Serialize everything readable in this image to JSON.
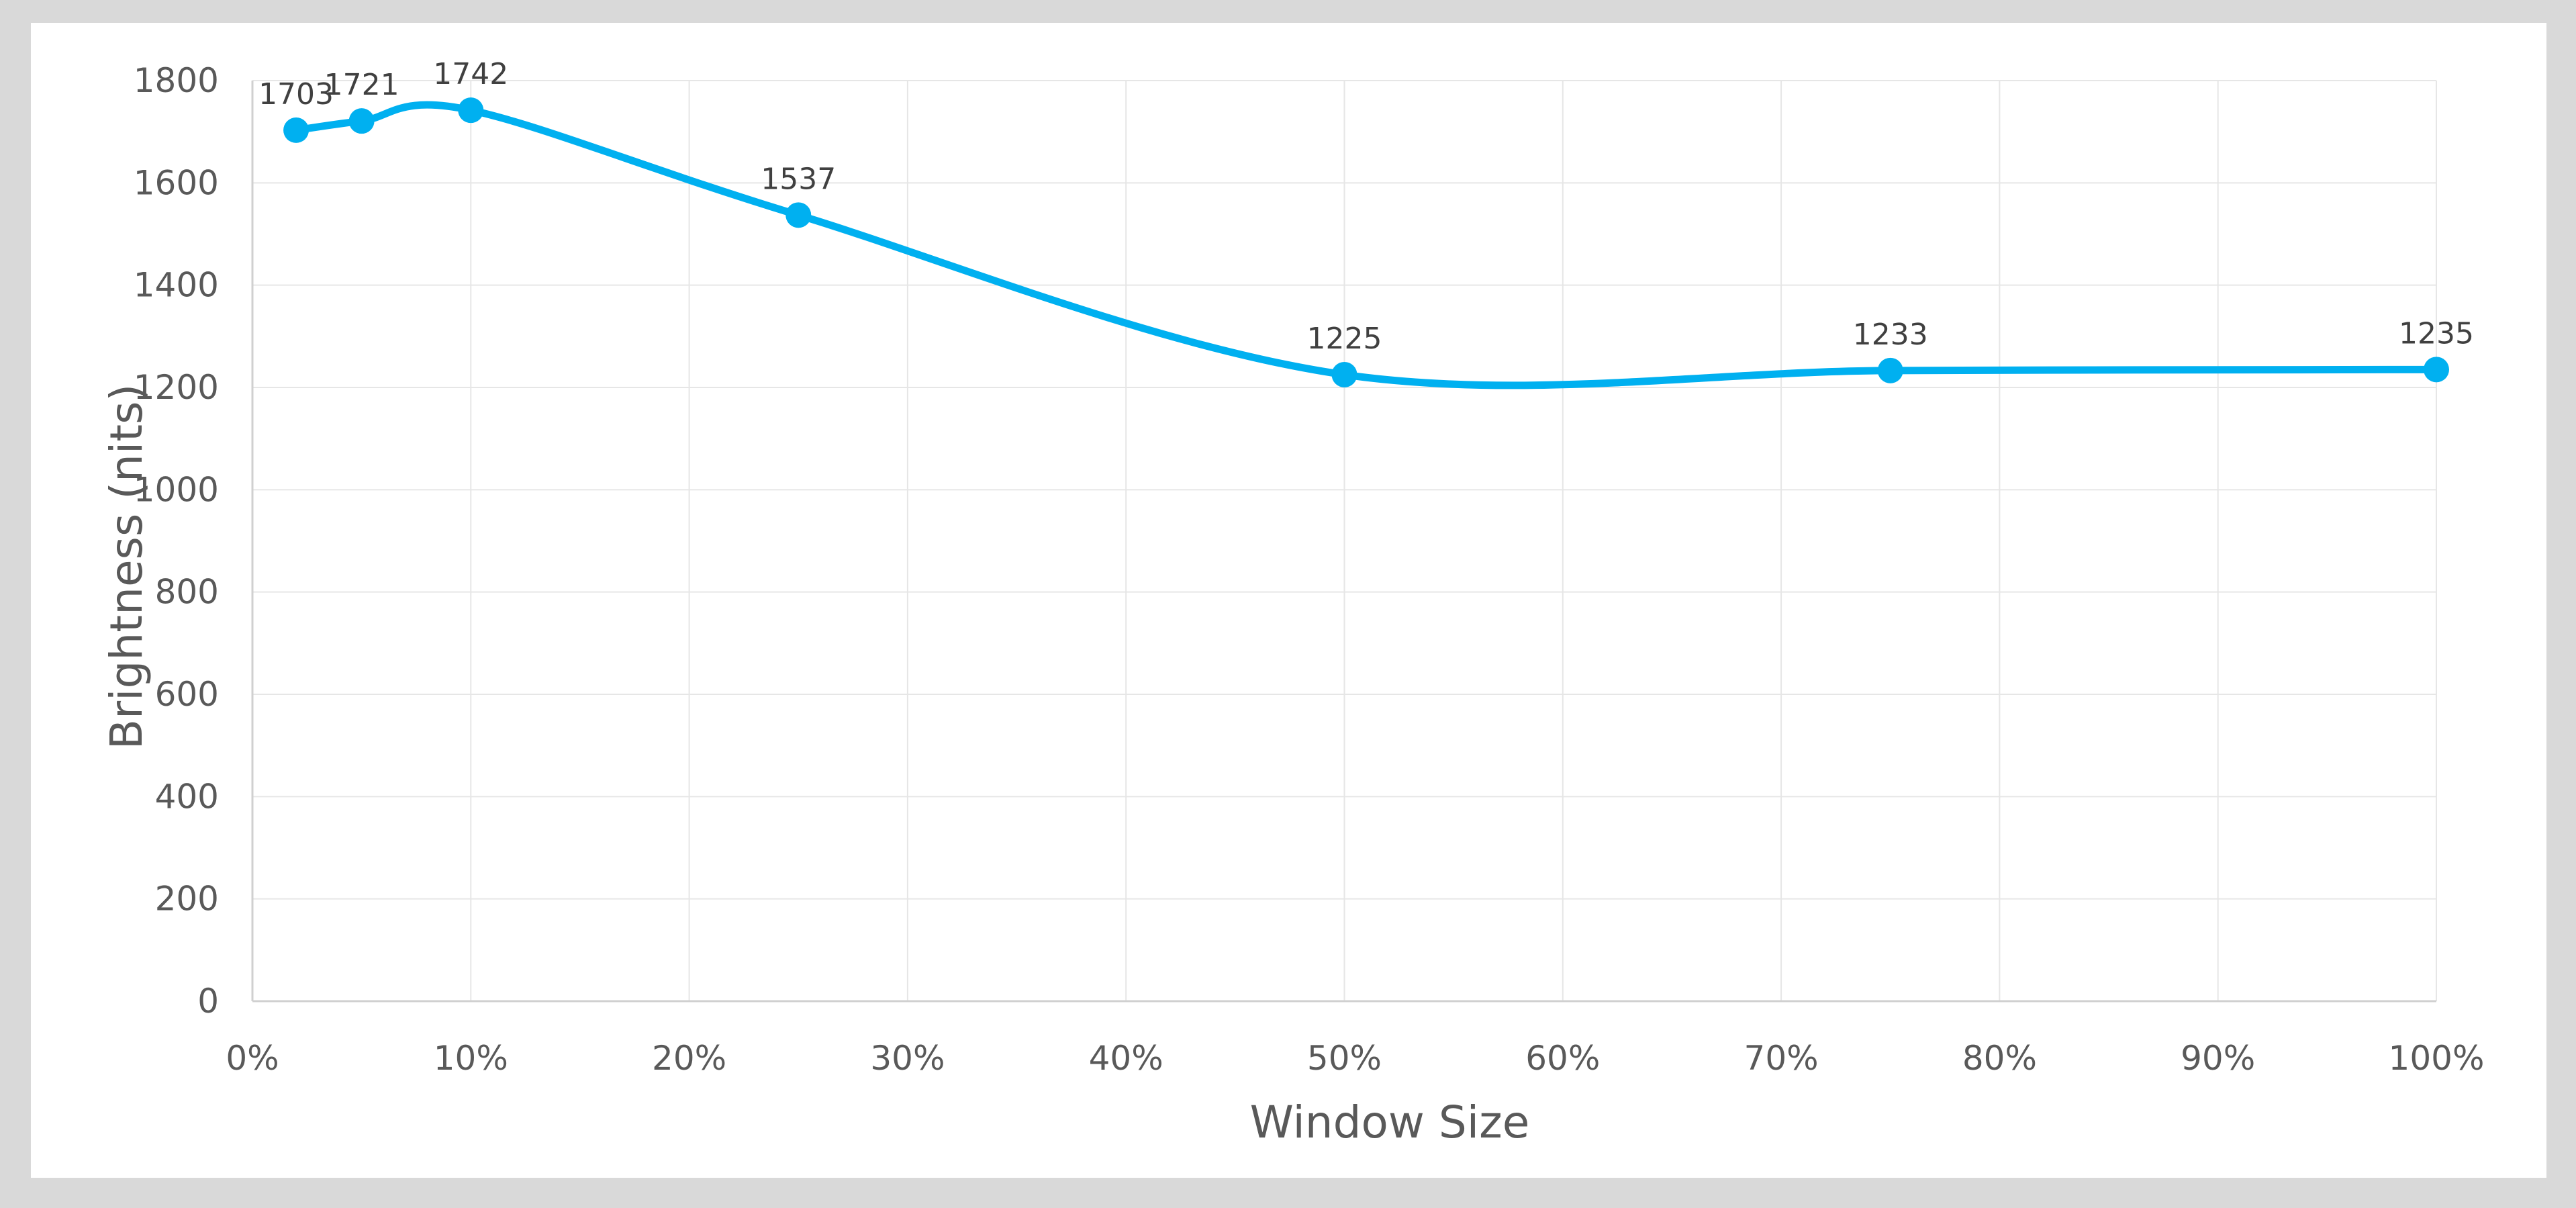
{
  "chart_data": {
    "type": "line",
    "smooth": true,
    "xlabel": "Window Size",
    "ylabel": "Brightness (nits)",
    "xlim": [
      0,
      100
    ],
    "ylim": [
      0,
      1800
    ],
    "x_ticks": [
      "0%",
      "10%",
      "20%",
      "30%",
      "40%",
      "50%",
      "60%",
      "70%",
      "80%",
      "90%",
      "100%"
    ],
    "y_ticks": [
      "0",
      "200",
      "400",
      "600",
      "800",
      "1000",
      "1200",
      "1400",
      "1600",
      "1800"
    ],
    "grid": true,
    "series": [
      {
        "color": "#00b0f0",
        "points": [
          {
            "x": 2,
            "y": 1703,
            "label": "1703"
          },
          {
            "x": 5,
            "y": 1721,
            "label": "1721"
          },
          {
            "x": 10,
            "y": 1742,
            "label": "1742"
          },
          {
            "x": 25,
            "y": 1537,
            "label": "1537"
          },
          {
            "x": 50,
            "y": 1225,
            "label": "1225"
          },
          {
            "x": 75,
            "y": 1233,
            "label": "1233"
          },
          {
            "x": 100,
            "y": 1235,
            "label": "1235"
          }
        ]
      }
    ]
  }
}
